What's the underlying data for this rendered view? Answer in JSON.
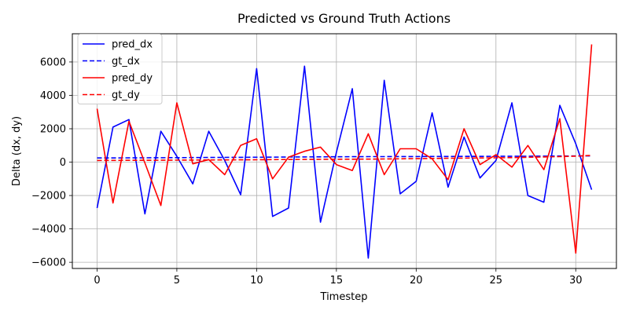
{
  "chart_data": {
    "type": "line",
    "title": "Predicted vs Ground Truth Actions",
    "xlabel": "Timestep",
    "ylabel": "Delta (dx, dy)",
    "xlim": [
      -1.55,
      32.55
    ],
    "ylim": [
      -6370,
      7690
    ],
    "xticks": [
      0,
      5,
      10,
      15,
      20,
      25,
      30
    ],
    "yticks": [
      -6000,
      -4000,
      -2000,
      0,
      2000,
      4000,
      6000
    ],
    "grid": true,
    "legend_position": "top-left",
    "x": [
      0,
      1,
      2,
      3,
      4,
      5,
      6,
      7,
      8,
      9,
      10,
      11,
      12,
      13,
      14,
      15,
      16,
      17,
      18,
      19,
      20,
      21,
      22,
      23,
      24,
      25,
      26,
      27,
      28,
      29,
      30,
      31
    ],
    "series": [
      {
        "name": "pred_dx",
        "color": "#0000ff",
        "dash": "solid",
        "values": [
          -2750,
          2100,
          2550,
          -3100,
          1850,
          350,
          -1300,
          1850,
          100,
          -1950,
          5600,
          -3250,
          -2750,
          5750,
          -3600,
          600,
          4400,
          -5750,
          4900,
          -1900,
          -1150,
          2950,
          -1500,
          1500,
          -950,
          100,
          3550,
          -2000,
          -2400,
          3400,
          1100,
          -1650
        ]
      },
      {
        "name": "gt_dx",
        "color": "#0000ff",
        "dash": "dashed",
        "values": [
          250,
          250,
          255,
          260,
          265,
          270,
          275,
          280,
          285,
          290,
          295,
          300,
          305,
          310,
          315,
          320,
          325,
          330,
          330,
          335,
          335,
          340,
          340,
          345,
          345,
          350,
          350,
          355,
          360,
          365,
          370,
          380
        ]
      },
      {
        "name": "pred_dy",
        "color": "#ff0000",
        "dash": "solid",
        "values": [
          3200,
          -2450,
          2450,
          -50,
          -2600,
          3550,
          -100,
          150,
          -750,
          1000,
          1400,
          -1000,
          300,
          650,
          900,
          -150,
          -500,
          1700,
          -750,
          800,
          800,
          200,
          -1050,
          2000,
          -150,
          450,
          -300,
          1000,
          -450,
          2600,
          -5450,
          7050
        ]
      },
      {
        "name": "gt_dy",
        "color": "#ff0000",
        "dash": "dashed",
        "values": [
          100,
          105,
          110,
          110,
          115,
          120,
          125,
          130,
          135,
          140,
          145,
          150,
          155,
          160,
          165,
          170,
          175,
          180,
          190,
          200,
          210,
          220,
          230,
          240,
          250,
          260,
          270,
          290,
          310,
          330,
          360,
          400
        ]
      }
    ]
  }
}
